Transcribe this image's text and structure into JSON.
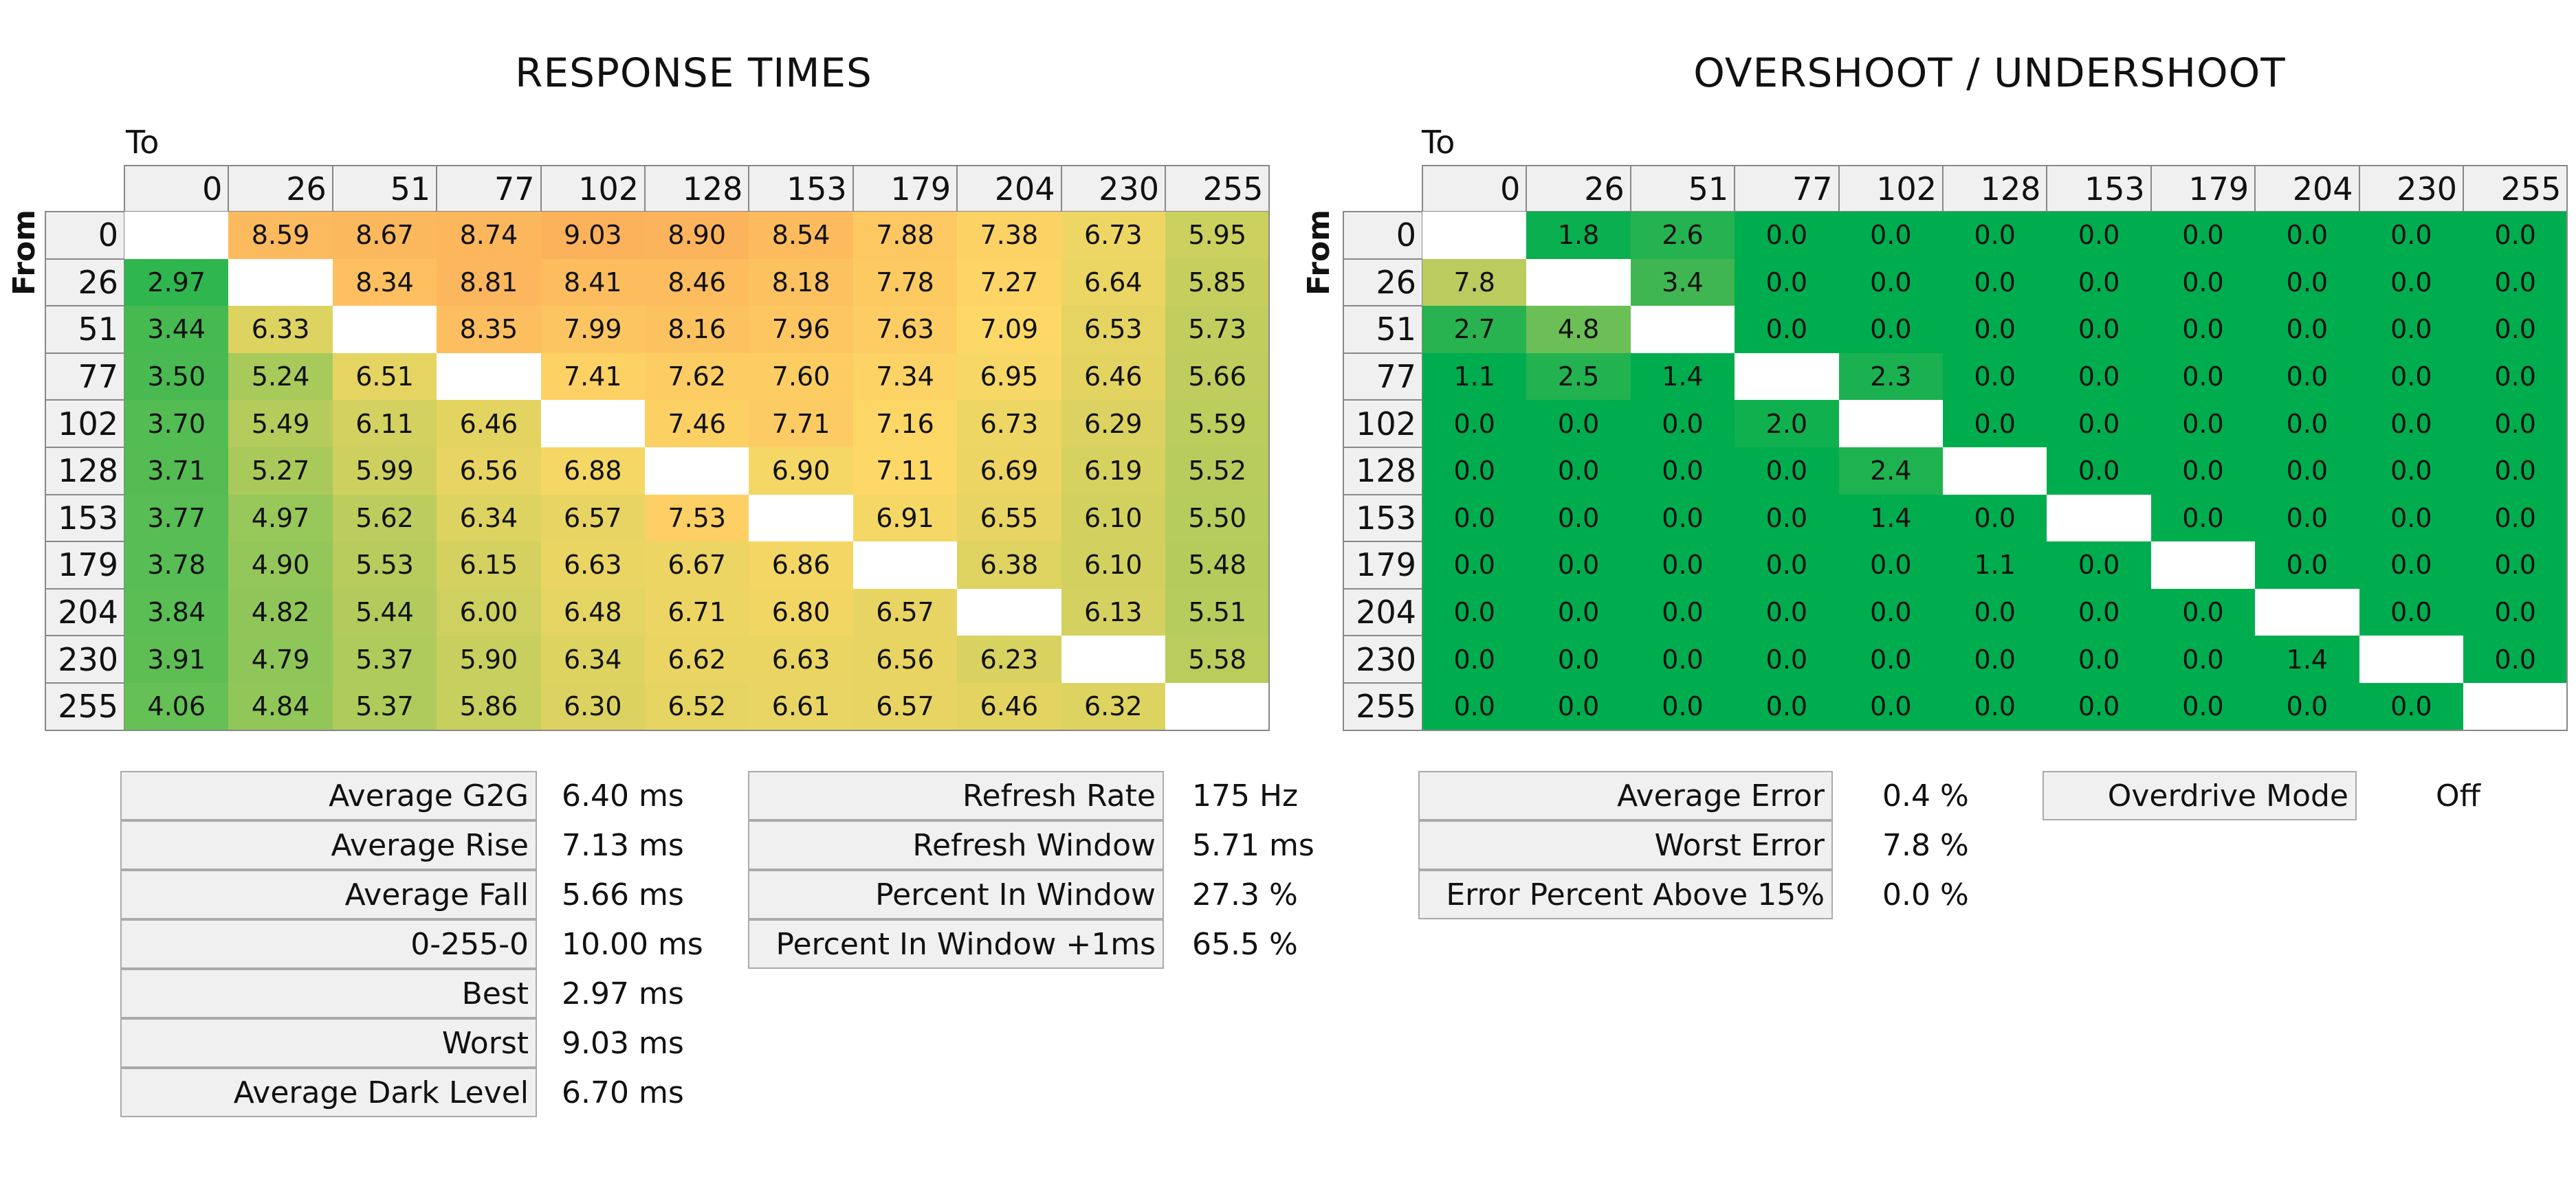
{
  "chart_data": [
    {
      "type": "heatmap",
      "title": "RESPONSE TIMES",
      "xlabel": "To",
      "ylabel": "From",
      "unit": "ms",
      "columns": [
        "0",
        "26",
        "51",
        "77",
        "102",
        "128",
        "153",
        "179",
        "204",
        "230",
        "255"
      ],
      "rows": [
        "0",
        "26",
        "51",
        "77",
        "102",
        "128",
        "153",
        "179",
        "204",
        "230",
        "255"
      ],
      "values": [
        [
          null,
          "8.59",
          "8.67",
          "8.74",
          "9.03",
          "8.90",
          "8.54",
          "7.88",
          "7.38",
          "6.73",
          "5.95"
        ],
        [
          "2.97",
          null,
          "8.34",
          "8.81",
          "8.41",
          "8.46",
          "8.18",
          "7.78",
          "7.27",
          "6.64",
          "5.85"
        ],
        [
          "3.44",
          "6.33",
          null,
          "8.35",
          "7.99",
          "8.16",
          "7.96",
          "7.63",
          "7.09",
          "6.53",
          "5.73"
        ],
        [
          "3.50",
          "5.24",
          "6.51",
          null,
          "7.41",
          "7.62",
          "7.60",
          "7.34",
          "6.95",
          "6.46",
          "5.66"
        ],
        [
          "3.70",
          "5.49",
          "6.11",
          "6.46",
          null,
          "7.46",
          "7.71",
          "7.16",
          "6.73",
          "6.29",
          "5.59"
        ],
        [
          "3.71",
          "5.27",
          "5.99",
          "6.56",
          "6.88",
          null,
          "6.90",
          "7.11",
          "6.69",
          "6.19",
          "5.52"
        ],
        [
          "3.77",
          "4.97",
          "5.62",
          "6.34",
          "6.57",
          "7.53",
          null,
          "6.91",
          "6.55",
          "6.10",
          "5.50"
        ],
        [
          "3.78",
          "4.90",
          "5.53",
          "6.15",
          "6.63",
          "6.67",
          "6.86",
          null,
          "6.38",
          "6.10",
          "5.48"
        ],
        [
          "3.84",
          "4.82",
          "5.44",
          "6.00",
          "6.48",
          "6.71",
          "6.80",
          "6.57",
          null,
          "6.13",
          "5.51"
        ],
        [
          "3.91",
          "4.79",
          "5.37",
          "5.90",
          "6.34",
          "6.62",
          "6.63",
          "6.56",
          "6.23",
          null,
          "5.58"
        ],
        [
          "4.06",
          "4.84",
          "5.37",
          "5.86",
          "6.30",
          "6.52",
          "6.61",
          "6.57",
          "6.46",
          "6.32",
          null
        ]
      ],
      "color_scale": {
        "stops": [
          [
            2.9,
            "#2bb54e"
          ],
          [
            4.0,
            "#62bf55"
          ],
          [
            5.5,
            "#b6cc5c"
          ],
          [
            6.5,
            "#e5d462"
          ],
          [
            7.1,
            "#fdd866"
          ],
          [
            8.0,
            "#fdc561"
          ],
          [
            9.1,
            "#fcb05b"
          ]
        ]
      }
    },
    {
      "type": "heatmap",
      "title": "OVERSHOOT / UNDERSHOOT",
      "xlabel": "To",
      "ylabel": "From",
      "unit": "%",
      "columns": [
        "0",
        "26",
        "51",
        "77",
        "102",
        "128",
        "153",
        "179",
        "204",
        "230",
        "255"
      ],
      "rows": [
        "0",
        "26",
        "51",
        "77",
        "102",
        "128",
        "153",
        "179",
        "204",
        "230",
        "255"
      ],
      "values": [
        [
          null,
          "1.8",
          "2.6",
          "0.0",
          "0.0",
          "0.0",
          "0.0",
          "0.0",
          "0.0",
          "0.0",
          "0.0"
        ],
        [
          "7.8",
          null,
          "3.4",
          "0.0",
          "0.0",
          "0.0",
          "0.0",
          "0.0",
          "0.0",
          "0.0",
          "0.0"
        ],
        [
          "2.7",
          "4.8",
          null,
          "0.0",
          "0.0",
          "0.0",
          "0.0",
          "0.0",
          "0.0",
          "0.0",
          "0.0"
        ],
        [
          "1.1",
          "2.5",
          "1.4",
          null,
          "2.3",
          "0.0",
          "0.0",
          "0.0",
          "0.0",
          "0.0",
          "0.0"
        ],
        [
          "0.0",
          "0.0",
          "0.0",
          "2.0",
          null,
          "0.0",
          "0.0",
          "0.0",
          "0.0",
          "0.0",
          "0.0"
        ],
        [
          "0.0",
          "0.0",
          "0.0",
          "0.0",
          "2.4",
          null,
          "0.0",
          "0.0",
          "0.0",
          "0.0",
          "0.0"
        ],
        [
          "0.0",
          "0.0",
          "0.0",
          "0.0",
          "1.4",
          "0.0",
          null,
          "0.0",
          "0.0",
          "0.0",
          "0.0"
        ],
        [
          "0.0",
          "0.0",
          "0.0",
          "0.0",
          "0.0",
          "1.1",
          "0.0",
          null,
          "0.0",
          "0.0",
          "0.0"
        ],
        [
          "0.0",
          "0.0",
          "0.0",
          "0.0",
          "0.0",
          "0.0",
          "0.0",
          "0.0",
          null,
          "0.0",
          "0.0"
        ],
        [
          "0.0",
          "0.0",
          "0.0",
          "0.0",
          "0.0",
          "0.0",
          "0.0",
          "0.0",
          "1.4",
          null,
          "0.0"
        ],
        [
          "0.0",
          "0.0",
          "0.0",
          "0.0",
          "0.0",
          "0.0",
          "0.0",
          "0.0",
          "0.0",
          "0.0",
          null
        ]
      ],
      "color_scale": {
        "stops": [
          [
            0,
            "#00ad4e"
          ],
          [
            1.5,
            "#00ad4e"
          ],
          [
            2.5,
            "#22b250"
          ],
          [
            3.4,
            "#3fb651"
          ],
          [
            4.8,
            "#6bbf56"
          ],
          [
            7.8,
            "#bccb5e"
          ]
        ]
      }
    }
  ],
  "stats": {
    "response": [
      {
        "label": "Average G2G",
        "value": "6.40 ms"
      },
      {
        "label": "Average Rise",
        "value": "7.13 ms"
      },
      {
        "label": "Average Fall",
        "value": "5.66 ms"
      },
      {
        "label": "0-255-0",
        "value": "10.00 ms"
      },
      {
        "label": "Best",
        "value": "2.97 ms"
      },
      {
        "label": "Worst",
        "value": "9.03 ms"
      },
      {
        "label": "Average Dark Level",
        "value": "6.70 ms"
      }
    ],
    "refresh": [
      {
        "label": "Refresh Rate",
        "value": "175 Hz"
      },
      {
        "label": "Refresh Window",
        "value": "5.71 ms"
      },
      {
        "label": "Percent In Window",
        "value": "27.3 %"
      },
      {
        "label": "Percent In Window +1ms",
        "value": "65.5 %"
      }
    ],
    "error": [
      {
        "label": "Average Error",
        "value": "0.4 %"
      },
      {
        "label": "Worst Error",
        "value": "7.8 %"
      },
      {
        "label": "Error Percent Above 15%",
        "value": "0.0 %"
      }
    ],
    "overdrive": {
      "label": "Overdrive Mode",
      "value": "Off"
    }
  }
}
